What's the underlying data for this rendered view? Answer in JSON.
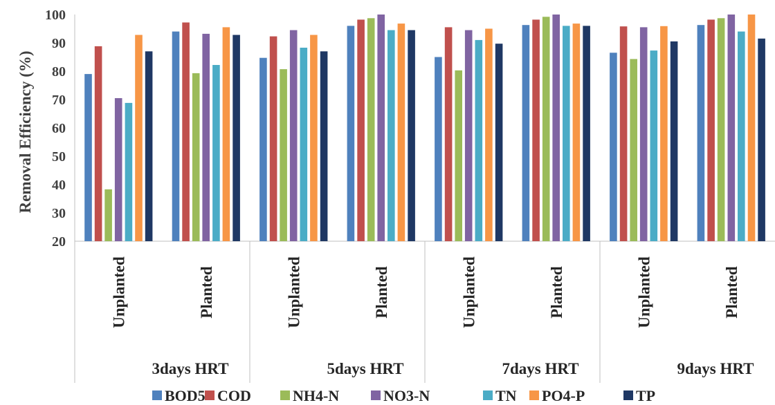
{
  "chart_data": {
    "type": "bar",
    "ylabel": "Removal Efficiency (%)",
    "ylim": [
      20,
      100
    ],
    "yticks": [
      20,
      30,
      40,
      50,
      60,
      70,
      80,
      90,
      100
    ],
    "grid": false,
    "legend_position": "bottom",
    "groups": [
      "3days HRT",
      "5days HRT",
      "7days HRT",
      "9days HRT"
    ],
    "categories": [
      "Unplanted",
      "Planted",
      "Unplanted",
      "Planted",
      "Unplanted",
      "Planted",
      "Unplanted",
      "Planted"
    ],
    "series": [
      {
        "name": "BOD5",
        "color": "#4f81bd",
        "values": [
          79,
          94,
          84.7,
          96,
          85,
          96.3,
          86.5,
          96.3
        ]
      },
      {
        "name": "COD",
        "color": "#c0504d",
        "values": [
          88.8,
          97.2,
          92.3,
          98.2,
          95.5,
          98.2,
          95.8,
          98.2
        ]
      },
      {
        "name": "NH4-N",
        "color": "#9bbb59",
        "values": [
          38.3,
          79.3,
          80.7,
          98.7,
          80.3,
          99.2,
          84.3,
          98.7
        ]
      },
      {
        "name": "NO3-N",
        "color": "#8064a2",
        "values": [
          70.5,
          93.2,
          94.5,
          100,
          94.5,
          100,
          95.5,
          100
        ]
      },
      {
        "name": "TN",
        "color": "#4bacc6",
        "values": [
          68.8,
          82.2,
          88.3,
          94.5,
          91,
          96,
          87.3,
          94
        ]
      },
      {
        "name": "PO4-P",
        "color": "#f79646",
        "values": [
          92.8,
          95.5,
          92.8,
          96.8,
          95,
          96.8,
          95.9,
          100
        ]
      },
      {
        "name": "TP",
        "color": "#1f3864",
        "values": [
          87,
          92.8,
          87,
          94.5,
          89.7,
          96,
          90.5,
          91.5
        ]
      }
    ]
  }
}
